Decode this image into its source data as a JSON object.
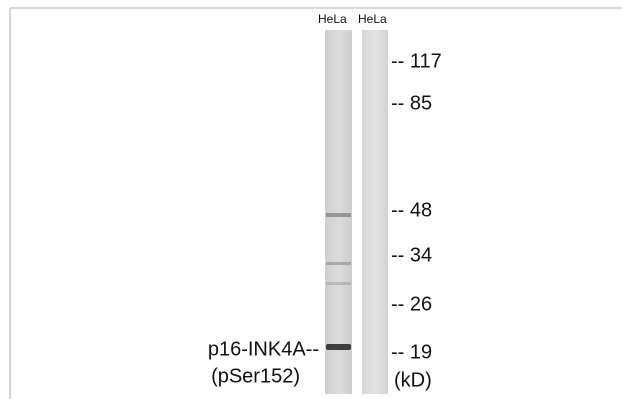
{
  "lanes": [
    {
      "label": "HeLa"
    },
    {
      "label": "HeLa"
    }
  ],
  "markers": [
    "-- 117",
    "-- 85",
    "-- 48",
    "-- 34",
    "-- 26",
    "-- 19"
  ],
  "unit": "(kD)",
  "protein_label": [
    "p16-INK4A--",
    "(pSer152)"
  ]
}
